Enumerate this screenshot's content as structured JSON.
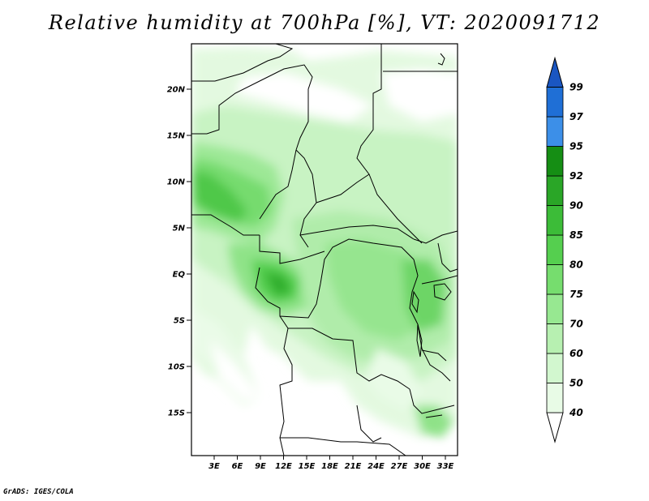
{
  "title": "Relative humidity at 700hPa [%], VT: 2020091712",
  "credit": "GrADS: IGES/COLA",
  "map": {
    "lat_ticks": [
      "20N",
      "15N",
      "10N",
      "5N",
      "EQ",
      "5S",
      "10S",
      "15S"
    ],
    "lon_ticks": [
      "3E",
      "6E",
      "9E",
      "12E",
      "15E",
      "18E",
      "21E",
      "24E",
      "27E",
      "30E",
      "33E"
    ]
  },
  "colorbar": {
    "labels": [
      "40",
      "50",
      "60",
      "70",
      "75",
      "80",
      "85",
      "90",
      "92",
      "95",
      "97",
      "99"
    ],
    "colors": [
      "#ffffff",
      "#e8fbe6",
      "#d2f7cf",
      "#b7f0b1",
      "#97e891",
      "#76dd6e",
      "#55cf4f",
      "#3cbc38",
      "#2aa627",
      "#158e14",
      "#3c8fe8",
      "#1f6fd6",
      "#1a56c2"
    ]
  }
}
